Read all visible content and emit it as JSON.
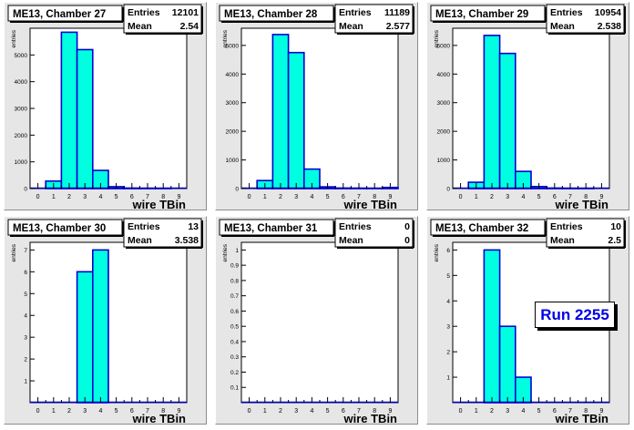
{
  "run_label": "Run 2255",
  "fill_color": "#00ffe0",
  "line_color": "#0000d0",
  "chart_data": [
    {
      "type": "bar",
      "title": "ME13, Chamber 27",
      "stats": {
        "entries_label": "Entries",
        "entries": "12101",
        "mean_label": "Mean",
        "mean": "2.54"
      },
      "xlabel": "wire TBin",
      "ylabel": "entries",
      "xlim": [
        -0.5,
        9.5
      ],
      "ylim": [
        0,
        6000
      ],
      "x_ticks": [
        "0",
        "1",
        "2",
        "3",
        "4",
        "5",
        "6",
        "7",
        "8",
        "9"
      ],
      "y_ticks": [
        0,
        1000,
        2000,
        3000,
        4000,
        5000
      ],
      "bins": [
        0,
        1,
        2,
        3,
        4,
        5,
        6,
        7,
        8,
        9
      ],
      "values": [
        0,
        280,
        5850,
        5200,
        680,
        70,
        15,
        8,
        5,
        0
      ]
    },
    {
      "type": "bar",
      "title": "ME13, Chamber 28",
      "stats": {
        "entries_label": "Entries",
        "entries": "11189",
        "mean_label": "Mean",
        "mean": "2.577"
      },
      "xlabel": "wire TBin",
      "ylabel": "entries",
      "xlim": [
        -0.5,
        9.5
      ],
      "ylim": [
        0,
        5600
      ],
      "x_ticks": [
        "0",
        "1",
        "2",
        "3",
        "4",
        "5",
        "6",
        "7",
        "8",
        "9"
      ],
      "y_ticks": [
        0,
        1000,
        2000,
        3000,
        4000,
        5000
      ],
      "bins": [
        0,
        1,
        2,
        3,
        4,
        5,
        6,
        7,
        8,
        9
      ],
      "values": [
        0,
        280,
        5380,
        4750,
        680,
        60,
        15,
        10,
        5,
        40
      ]
    },
    {
      "type": "bar",
      "title": "ME13, Chamber 29",
      "stats": {
        "entries_label": "Entries",
        "entries": "10954",
        "mean_label": "Mean",
        "mean": "2.538"
      },
      "xlabel": "wire TBin",
      "ylabel": "entries",
      "xlim": [
        -0.5,
        9.5
      ],
      "ylim": [
        0,
        5600
      ],
      "x_ticks": [
        "0",
        "1",
        "2",
        "3",
        "4",
        "5",
        "6",
        "7",
        "8",
        "9"
      ],
      "y_ticks": [
        0,
        1000,
        2000,
        3000,
        4000,
        5000
      ],
      "bins": [
        0,
        1,
        2,
        3,
        4,
        5,
        6,
        7,
        8,
        9
      ],
      "values": [
        0,
        220,
        5350,
        4720,
        600,
        70,
        15,
        8,
        5,
        0
      ]
    },
    {
      "type": "bar",
      "title": "ME13, Chamber 30",
      "stats": {
        "entries_label": "Entries",
        "entries": "13",
        "mean_label": "Mean",
        "mean": "3.538"
      },
      "xlabel": "wire TBin",
      "ylabel": "entries",
      "xlim": [
        -0.5,
        9.5
      ],
      "ylim": [
        0,
        7.35
      ],
      "x_ticks": [
        "0",
        "1",
        "2",
        "3",
        "4",
        "5",
        "6",
        "7",
        "8",
        "9"
      ],
      "y_ticks": [
        1,
        2,
        3,
        4,
        5,
        6,
        7
      ],
      "bins": [
        0,
        1,
        2,
        3,
        4,
        5,
        6,
        7,
        8,
        9
      ],
      "values": [
        0,
        0,
        0,
        6,
        7,
        0,
        0,
        0,
        0,
        0
      ]
    },
    {
      "type": "bar",
      "title": "ME13, Chamber 31",
      "stats": {
        "entries_label": "Entries",
        "entries": "0",
        "mean_label": "Mean",
        "mean": "0"
      },
      "xlabel": "wire TBin",
      "ylabel": "entries",
      "xlim": [
        -0.5,
        9.5
      ],
      "ylim": [
        0,
        1.05
      ],
      "x_ticks": [
        "0",
        "1",
        "2",
        "3",
        "4",
        "5",
        "6",
        "7",
        "8",
        "9"
      ],
      "y_ticks": [
        0.1,
        0.2,
        0.3,
        0.4,
        0.5,
        0.6,
        0.7,
        0.8,
        0.9,
        1
      ],
      "bins": [
        0,
        1,
        2,
        3,
        4,
        5,
        6,
        7,
        8,
        9
      ],
      "values": [
        0,
        0,
        0,
        0,
        0,
        0,
        0,
        0,
        0,
        0
      ]
    },
    {
      "type": "bar",
      "title": "ME13, Chamber 32",
      "stats": {
        "entries_label": "Entries",
        "entries": "10",
        "mean_label": "Mean",
        "mean": "2.5"
      },
      "xlabel": "wire TBin",
      "ylabel": "entries",
      "xlim": [
        -0.5,
        9.5
      ],
      "ylim": [
        0,
        6.3
      ],
      "x_ticks": [
        "0",
        "1",
        "2",
        "3",
        "4",
        "5",
        "6",
        "7",
        "8",
        "9"
      ],
      "y_ticks": [
        1,
        2,
        3,
        4,
        5,
        6
      ],
      "bins": [
        0,
        1,
        2,
        3,
        4,
        5,
        6,
        7,
        8,
        9
      ],
      "values": [
        0,
        0,
        6,
        3,
        1,
        0,
        0,
        0,
        0,
        0
      ]
    }
  ]
}
